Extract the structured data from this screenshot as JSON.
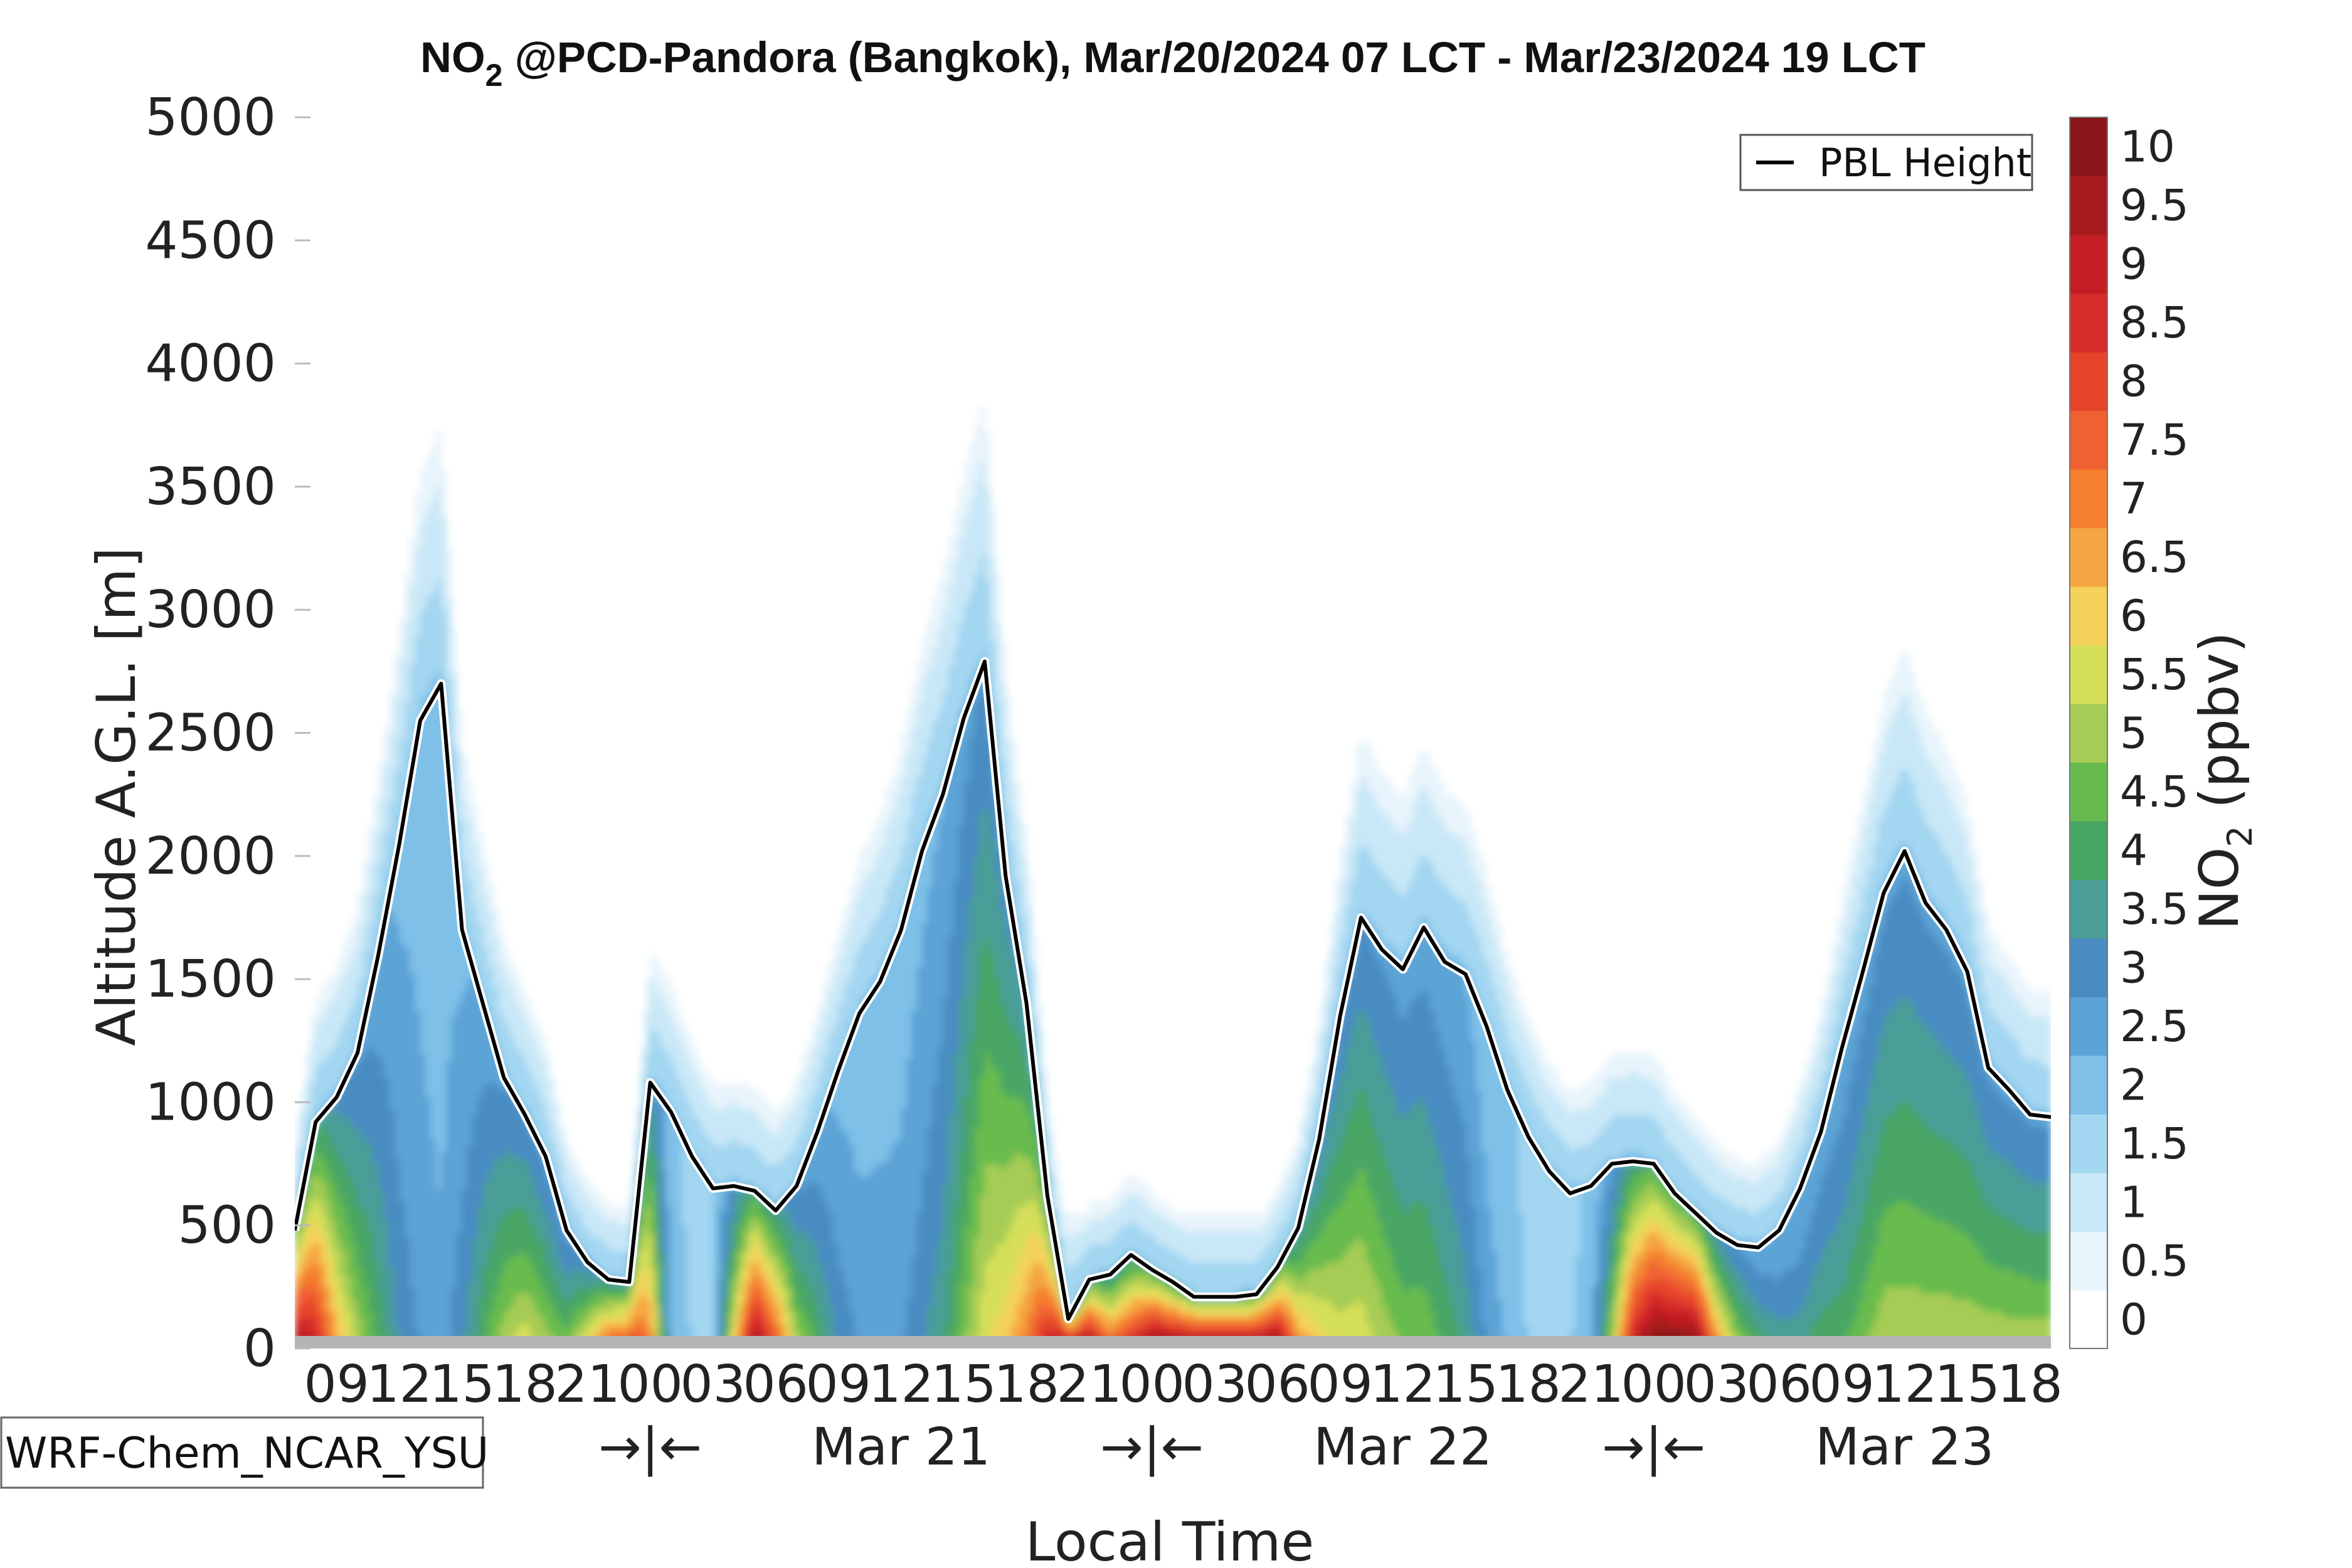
{
  "chart_data": {
    "type": "heatmap",
    "title_prefix": "NO",
    "title_sub": "2",
    "title_suffix": " @PCD-Pandora (Bangkok), Mar/20/2024 07 LCT - Mar/23/2024 19 LCT",
    "xlabel": "Local Time",
    "ylabel": "Altitude A.G.L. [m]",
    "ylim": [
      0,
      5000
    ],
    "yticks": [
      "0",
      "500",
      "1000",
      "1500",
      "2000",
      "2500",
      "3000",
      "3500",
      "4000",
      "4500",
      "5000"
    ],
    "hour_ticks": [
      "09",
      "12",
      "15",
      "18",
      "21",
      "00",
      "03",
      "06",
      "09",
      "12",
      "15",
      "18",
      "21",
      "00",
      "03",
      "06",
      "09",
      "12",
      "15",
      "18",
      "21",
      "00",
      "03",
      "06",
      "09",
      "12",
      "15",
      "18"
    ],
    "date_labels": [
      "Mar 21",
      "Mar 22",
      "Mar 23"
    ],
    "day_separator": "→|←",
    "time_start_hour": 7,
    "time_end_hour": 91,
    "colorbar": {
      "label_prefix": "NO",
      "label_sub": "2",
      "label_suffix": " (ppbv)",
      "ticks": [
        "0",
        "0.5",
        "1",
        "1.5",
        "2",
        "2.5",
        "3",
        "3.5",
        "4",
        "4.5",
        "5",
        "5.5",
        "6",
        "6.5",
        "7",
        "7.5",
        "8",
        "8.5",
        "9",
        "9.5",
        "10"
      ],
      "colors": [
        "#ffffff",
        "#e8f4fb",
        "#c9e8f7",
        "#a3d6f1",
        "#7ec0e8",
        "#5ca3d6",
        "#4a8cc2",
        "#4a9e97",
        "#48a665",
        "#68bb4e",
        "#a6cc55",
        "#d6df5a",
        "#f4d25c",
        "#f5a642",
        "#f47f2f",
        "#ef6130",
        "#e5442a",
        "#d52b2b",
        "#c21e24",
        "#a81a1e",
        "#8a1519"
      ]
    },
    "series": [
      {
        "name": "PBL Height",
        "x_hours": [
          7,
          8,
          9,
          10,
          11,
          12,
          13,
          14,
          15,
          16,
          17,
          18,
          19,
          20,
          21,
          22,
          23,
          24,
          25,
          26,
          27,
          28,
          29,
          30,
          31,
          32,
          33,
          34,
          35,
          36,
          37,
          38,
          39,
          40,
          41,
          42,
          43,
          44,
          45,
          46,
          47,
          48,
          49,
          50,
          51,
          52,
          53,
          54,
          55,
          56,
          57,
          58,
          59,
          60,
          61,
          62,
          63,
          64,
          65,
          66,
          67,
          68,
          69,
          70,
          71,
          72,
          73,
          74,
          75,
          76,
          77,
          78,
          79,
          80,
          81,
          82,
          83,
          84,
          85,
          86,
          87,
          88,
          89,
          90,
          91
        ],
        "values": [
          480,
          920,
          1020,
          1200,
          1600,
          2050,
          2550,
          2700,
          1700,
          1400,
          1100,
          950,
          780,
          480,
          350,
          280,
          270,
          1080,
          960,
          780,
          650,
          660,
          640,
          560,
          660,
          880,
          1130,
          1360,
          1490,
          1700,
          2020,
          2250,
          2560,
          2790,
          1920,
          1400,
          620,
          120,
          280,
          300,
          380,
          320,
          270,
          210,
          210,
          210,
          220,
          330,
          490,
          850,
          1350,
          1750,
          1620,
          1540,
          1710,
          1570,
          1520,
          1310,
          1050,
          860,
          720,
          630,
          660,
          750,
          760,
          750,
          630,
          550,
          470,
          420,
          410,
          480,
          650,
          880,
          1220,
          1530,
          1850,
          2020,
          1810,
          1700,
          1530,
          1140,
          1050,
          950,
          940
        ]
      }
    ],
    "legend": {
      "label": "PBL Height",
      "position": "top-right"
    },
    "annotation": "WRF-Chem_NCAR_YSU"
  }
}
